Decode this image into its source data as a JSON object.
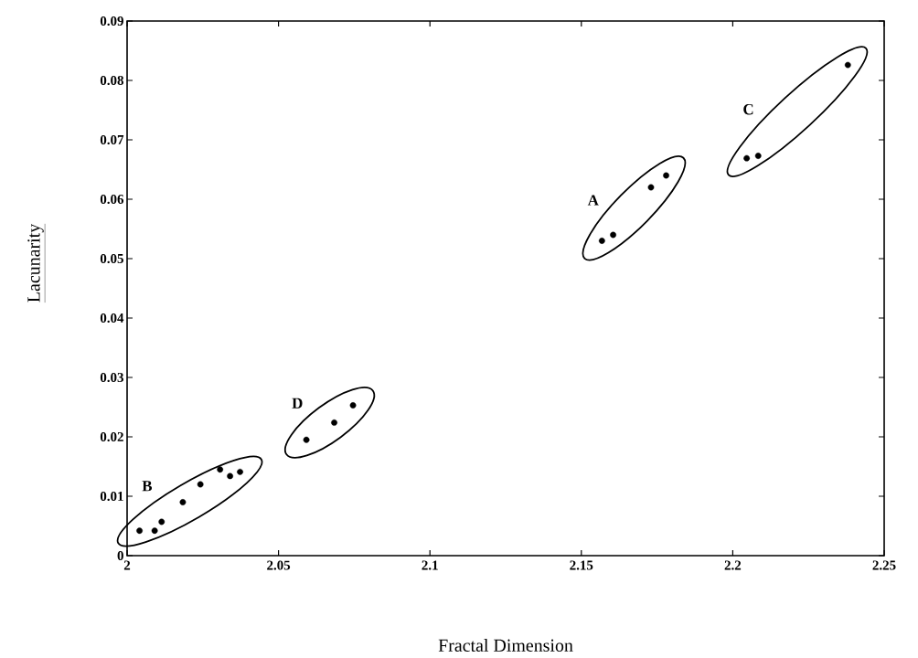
{
  "chart_data": {
    "type": "scatter",
    "xlabel": "Fractal Dimension",
    "ylabel": "Lacunarity",
    "xlim": [
      2,
      2.25
    ],
    "ylim": [
      0,
      0.09
    ],
    "xticks": [
      2,
      2.05,
      2.1,
      2.15,
      2.2,
      2.25
    ],
    "yticks": [
      0,
      0.01,
      0.02,
      0.03,
      0.04,
      0.05,
      0.06,
      0.07,
      0.08,
      0.09
    ],
    "marker": "circle",
    "series": [
      {
        "color": "#000000",
        "x": [
          2.1568,
          2.1605,
          2.173,
          2.178
        ],
        "values": [
          0.053,
          0.054,
          0.062,
          0.064
        ]
      },
      {
        "color": "#000000",
        "x": [
          2.0041,
          2.0091,
          2.0114,
          2.0184,
          2.0242,
          2.0307,
          2.034,
          2.0373
        ],
        "values": [
          0.0042,
          0.0042,
          0.0057,
          0.009,
          0.012,
          0.0145,
          0.0134,
          0.0141
        ]
      },
      {
        "color": "#000000",
        "x": [
          2.2046,
          2.2084,
          2.238
        ],
        "values": [
          0.0669,
          0.0673,
          0.0826
        ]
      },
      {
        "color": "#000000",
        "x": [
          2.0592,
          2.0684,
          2.0746
        ],
        "values": [
          0.0195,
          0.0224,
          0.0253
        ]
      }
    ],
    "annotations": [
      "A",
      "B",
      "C",
      "D"
    ]
  }
}
